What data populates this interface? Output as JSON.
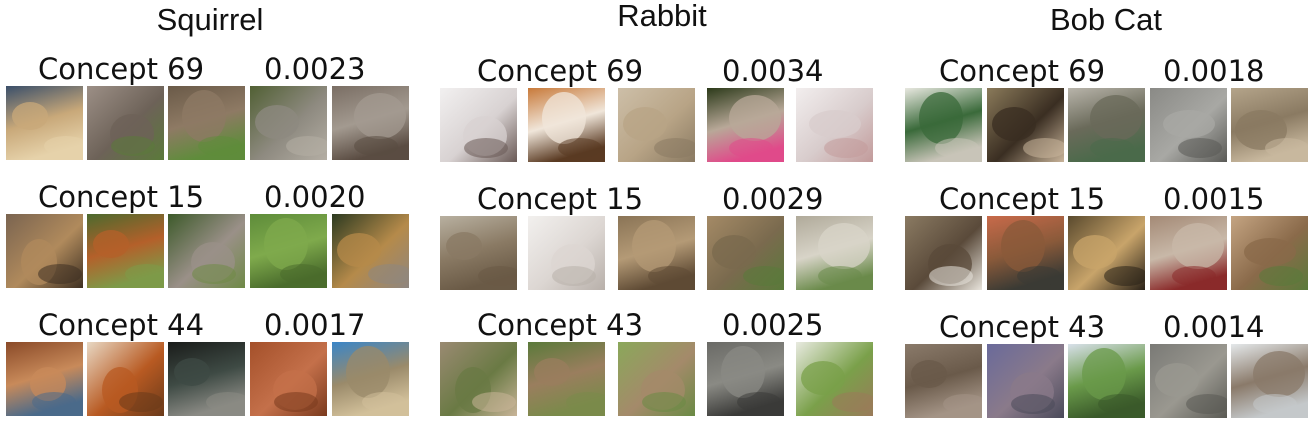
{
  "columns": [
    {
      "title": "Squirrel",
      "rows": [
        {
          "label": "Concept 69",
          "value": "0.0023",
          "images": [
            {
              "name": "squirrel-tail-photo",
              "colors": [
                "#3a4f6a",
                "#c8a879",
                "#e6d2aa"
              ]
            },
            {
              "name": "squirrel-eating-photo",
              "colors": [
                "#9c8f86",
                "#6d6258",
                "#5b7a3a"
              ]
            },
            {
              "name": "squirrel-grass-photo",
              "colors": [
                "#6a5a48",
                "#8e7a64",
                "#5f8c3b"
              ]
            },
            {
              "name": "gray-squirrel-photo",
              "colors": [
                "#516034",
                "#8e8a80",
                "#b4aea4"
              ]
            },
            {
              "name": "squirrel-closeup-photo",
              "colors": [
                "#7a6e64",
                "#a39a90",
                "#5a4c42"
              ]
            }
          ]
        },
        {
          "label": "Concept 15",
          "value": "0.0020",
          "images": [
            {
              "name": "squirrel-face-photo",
              "colors": [
                "#7a6450",
                "#b08a5c",
                "#3e3022"
              ]
            },
            {
              "name": "red-squirrel-photo",
              "colors": [
                "#4c6a2e",
                "#b4602a",
                "#7d9a48"
              ]
            },
            {
              "name": "squirrel-standing-photo",
              "colors": [
                "#3d5a2a",
                "#9a9088",
                "#6f8a46"
              ]
            },
            {
              "name": "lawn-squirrel-photo",
              "colors": [
                "#5e8c3a",
                "#7faa4c",
                "#4a6c2c"
              ]
            },
            {
              "name": "squirrel-portrait-photo",
              "colors": [
                "#2c3a20",
                "#b58a4a",
                "#8e8680"
              ]
            }
          ]
        },
        {
          "label": "Concept 44",
          "value": "0.0017",
          "images": [
            {
              "name": "squirrel-side-photo",
              "colors": [
                "#8a4a28",
                "#c88a5a",
                "#4a6a8a"
              ]
            },
            {
              "name": "squirrel-branch-photo",
              "colors": [
                "#e8d8c4",
                "#b85a22",
                "#6a3a1a"
              ]
            },
            {
              "name": "squirrel-window-photo",
              "colors": [
                "#1a1c1a",
                "#3e4a44",
                "#8a8a84"
              ]
            },
            {
              "name": "squirrel-fur-photo",
              "colors": [
                "#a4502a",
                "#c4704a",
                "#7a3a1e"
              ]
            },
            {
              "name": "squirrel-sky-photo",
              "colors": [
                "#3a86c8",
                "#9a8a6a",
                "#d2c09a"
              ]
            }
          ]
        }
      ]
    },
    {
      "title": "Rabbit",
      "rows": [
        {
          "label": "Concept 69",
          "value": "0.0034",
          "images": [
            {
              "name": "white-rabbit-photo",
              "colors": [
                "#f2f0f0",
                "#d8d2d2",
                "#6a5a56"
              ]
            },
            {
              "name": "brown-rabbit-photo",
              "colors": [
                "#c87a3a",
                "#f0e6da",
                "#5a3a22"
              ]
            },
            {
              "name": "cream-rabbit-photo",
              "colors": [
                "#cdbfa8",
                "#b8a486",
                "#8a7a62"
              ]
            },
            {
              "name": "rabbit-ears-photo",
              "colors": [
                "#2c3a1a",
                "#b8a898",
                "#e04a8a"
              ]
            },
            {
              "name": "rabbit-nose-photo",
              "colors": [
                "#f2eeee",
                "#d8cccc",
                "#c29a9a"
              ]
            }
          ]
        },
        {
          "label": "Concept 15",
          "value": "0.0029",
          "images": [
            {
              "name": "rabbit-yard-photo",
              "colors": [
                "#b8b0a0",
                "#8a7a64",
                "#6a5a46"
              ]
            },
            {
              "name": "fluffy-rabbit-photo",
              "colors": [
                "#f2f0ee",
                "#dcd6d2",
                "#b8b0aa"
              ]
            },
            {
              "name": "rabbit-ear-closeup-photo",
              "colors": [
                "#8a7456",
                "#b49a76",
                "#5e4a34"
              ]
            },
            {
              "name": "wild-rabbit-photo",
              "colors": [
                "#a48a66",
                "#7a6a4e",
                "#5a7a3a"
              ]
            },
            {
              "name": "gray-rabbit-photo",
              "colors": [
                "#b0aa9a",
                "#d8d4c8",
                "#6a8a4a"
              ]
            }
          ]
        },
        {
          "label": "Concept 43",
          "value": "0.0025",
          "images": [
            {
              "name": "rabbit-field-photo",
              "colors": [
                "#9a8a72",
                "#6a7a44",
                "#c8b498"
              ]
            },
            {
              "name": "rabbit-grass-photo",
              "colors": [
                "#5a7a3a",
                "#9a7e5e",
                "#7a8a4a"
              ]
            },
            {
              "name": "rabbit-meadow-photo",
              "colors": [
                "#8aa85a",
                "#a48a6a",
                "#6a8a44"
              ]
            },
            {
              "name": "dark-rabbit-photo",
              "colors": [
                "#6a6a66",
                "#8a8a84",
                "#3a3a38"
              ]
            },
            {
              "name": "rabbit-flowers-photo",
              "colors": [
                "#e8eae0",
                "#7aa04a",
                "#9a7a5a"
              ]
            }
          ]
        }
      ]
    },
    {
      "title": "Bob Cat",
      "rows": [
        {
          "label": "Concept 69",
          "value": "0.0018",
          "images": [
            {
              "name": "bobcat-fur-photo",
              "colors": [
                "#e8e8e0",
                "#3a6a3a",
                "#c8c4b8"
              ]
            },
            {
              "name": "bobcat-face-photo",
              "colors": [
                "#8a7a5a",
                "#3a2e22",
                "#c8b49a"
              ]
            },
            {
              "name": "bobcat-profile-photo",
              "colors": [
                "#b8b4aa",
                "#6a6a5a",
                "#4a6a4a"
              ]
            },
            {
              "name": "bobcat-body-photo",
              "colors": [
                "#8a8a86",
                "#a8a8a4",
                "#5a5a56"
              ]
            },
            {
              "name": "bobcat-eye-photo",
              "colors": [
                "#b4a48a",
                "#8a7a62",
                "#c8b89e"
              ]
            }
          ]
        },
        {
          "label": "Concept 15",
          "value": "0.0015",
          "images": [
            {
              "name": "bobcat-hand-photo",
              "colors": [
                "#8a7a62",
                "#5a4a3a",
                "#e8e4dc"
              ]
            },
            {
              "name": "bobcat-person-photo",
              "colors": [
                "#c86a4a",
                "#8a5a3a",
                "#3a3a34"
              ]
            },
            {
              "name": "bobcat-den-photo",
              "colors": [
                "#5a4a2e",
                "#c8a46a",
                "#2a2218"
              ]
            },
            {
              "name": "bobcat-snarl-photo",
              "colors": [
                "#a48a76",
                "#c8b8a8",
                "#8a2a2a"
              ]
            },
            {
              "name": "bobcat-closeup-photo",
              "colors": [
                "#c4a482",
                "#8a6a4a",
                "#5a7a3a"
              ]
            }
          ]
        },
        {
          "label": "Concept 43",
          "value": "0.0014",
          "images": [
            {
              "name": "bobcat-rocks-photo",
              "colors": [
                "#8a7a6a",
                "#6a5a4a",
                "#a49486"
              ]
            },
            {
              "name": "bobcat-twilight-photo",
              "colors": [
                "#6a6a9a",
                "#8a7a8a",
                "#4a4a5a"
              ]
            },
            {
              "name": "bobcat-hill-photo",
              "colors": [
                "#d8e0ea",
                "#6a9a4a",
                "#3a5a2a"
              ]
            },
            {
              "name": "bobcat-standing-photo",
              "colors": [
                "#7a7a76",
                "#9a9890",
                "#5a5a54"
              ]
            },
            {
              "name": "bobcat-snow-photo",
              "colors": [
                "#e4e8ea",
                "#8a7a6a",
                "#c4c8ca"
              ]
            }
          ]
        }
      ]
    }
  ]
}
